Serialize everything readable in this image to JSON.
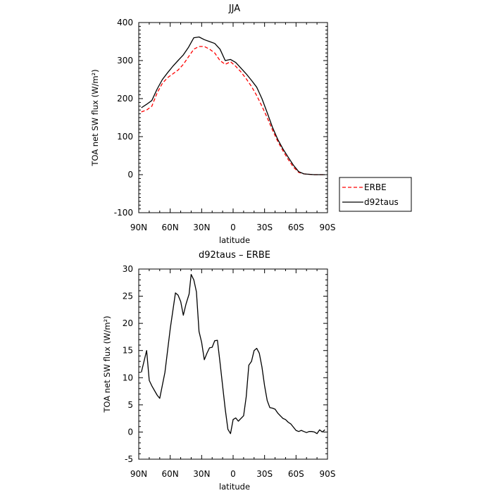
{
  "chart_data": [
    {
      "type": "line",
      "title": "JJA",
      "xlabel": "latitude",
      "ylabel": "TOA net SW flux (W/m²)",
      "ylim": [
        -100,
        400
      ],
      "yticks": [
        -100,
        0,
        100,
        200,
        300,
        400
      ],
      "xlim": [
        90,
        -90
      ],
      "xticks": [
        90,
        60,
        30,
        0,
        -30,
        -60,
        -90
      ],
      "xtick_labels": [
        "90N",
        "60N",
        "30N",
        "0",
        "30S",
        "60S",
        "90S"
      ],
      "legend": {
        "position": "right-outside",
        "entries": [
          "ERBE",
          "d92taus"
        ]
      },
      "series": [
        {
          "name": "ERBE",
          "color": "#ff0000",
          "dash": "dashed",
          "x": [
            87.5,
            82.5,
            77.5,
            72.5,
            67.5,
            62.5,
            57.5,
            52.5,
            47.5,
            42.5,
            37.5,
            32.5,
            27.5,
            22.5,
            17.5,
            12.5,
            7.5,
            2.5,
            -2.5,
            -7.5,
            -12.5,
            -17.5,
            -22.5,
            -27.5,
            -32.5,
            -37.5,
            -42.5,
            -47.5,
            -52.5,
            -57.5,
            -62.5,
            -67.5,
            -72.5,
            -77.5,
            -82.5,
            -87.5
          ],
          "y": [
            165,
            170,
            180,
            215,
            240,
            255,
            265,
            275,
            290,
            310,
            330,
            337,
            337,
            330,
            320,
            300,
            290,
            297,
            285,
            270,
            252,
            232,
            208,
            180,
            150,
            118,
            88,
            63,
            40,
            20,
            6,
            2,
            1,
            0,
            0,
            0
          ]
        },
        {
          "name": "d92taus",
          "color": "#000000",
          "dash": "solid",
          "x": [
            87.5,
            82.5,
            77.5,
            72.5,
            67.5,
            62.5,
            57.5,
            52.5,
            47.5,
            42.5,
            37.5,
            32.5,
            27.5,
            22.5,
            17.5,
            12.5,
            7.5,
            2.5,
            -2.5,
            -7.5,
            -12.5,
            -17.5,
            -22.5,
            -27.5,
            -32.5,
            -37.5,
            -42.5,
            -47.5,
            -52.5,
            -57.5,
            -62.5,
            -67.5,
            -72.5,
            -77.5,
            -82.5,
            -87.5
          ],
          "y": [
            176,
            185,
            195,
            225,
            250,
            268,
            285,
            300,
            315,
            335,
            360,
            362,
            355,
            350,
            345,
            330,
            300,
            303,
            295,
            280,
            265,
            248,
            230,
            200,
            163,
            125,
            93,
            68,
            46,
            25,
            8,
            2,
            1,
            0,
            0,
            0
          ]
        }
      ]
    },
    {
      "type": "line",
      "title": "d92taus – ERBE",
      "xlabel": "latitude",
      "ylabel": "TOA net SW flux (W/m²)",
      "ylim": [
        -5,
        30
      ],
      "yticks": [
        -5,
        0,
        5,
        10,
        15,
        20,
        25,
        30
      ],
      "xlim": [
        90,
        -90
      ],
      "xticks": [
        90,
        60,
        30,
        0,
        -30,
        -60,
        -90
      ],
      "xtick_labels": [
        "90N",
        "60N",
        "30N",
        "0",
        "30S",
        "60S",
        "90S"
      ],
      "series": [
        {
          "color": "#000000",
          "dash": "solid",
          "x": [
            87.5,
            82.5,
            80.0,
            77.5,
            72.5,
            70.0,
            65.0,
            60.0,
            55.0,
            52.5,
            50.0,
            47.5,
            45.0,
            42.0,
            40.0,
            37.5,
            35.0,
            32.5,
            30.0,
            27.5,
            25.0,
            22.5,
            20.0,
            17.5,
            15.0,
            12.5,
            10.0,
            7.5,
            5.0,
            2.5,
            0.0,
            -2.5,
            -5.0,
            -7.5,
            -10.0,
            -12.5,
            -15.0,
            -17.5,
            -20.0,
            -22.5,
            -25.0,
            -27.5,
            -30.0,
            -32.5,
            -35.0,
            -37.5,
            -40.0,
            -42.5,
            -45.0,
            -47.5,
            -50.0,
            -52.5,
            -55.0,
            -57.5,
            -60.0,
            -62.5,
            -65.0,
            -67.5,
            -70.0,
            -72.5,
            -75.0,
            -77.5,
            -80.0,
            -82.5,
            -85.0,
            -87.5
          ],
          "y": [
            11.0,
            15.0,
            9.5,
            8.5,
            6.8,
            6.2,
            11.0,
            19.0,
            25.6,
            25.2,
            24.0,
            21.5,
            23.5,
            25.4,
            29.0,
            28.0,
            25.8,
            18.5,
            16.5,
            13.3,
            14.5,
            15.5,
            15.6,
            16.8,
            16.9,
            12.8,
            8.5,
            4.2,
            0.5,
            -0.3,
            2.3,
            2.6,
            2.0,
            2.5,
            3.0,
            6.5,
            12.3,
            13.0,
            15.0,
            15.4,
            14.5,
            12.0,
            8.5,
            5.8,
            4.5,
            4.4,
            4.2,
            3.5,
            3.0,
            2.5,
            2.3,
            1.8,
            1.5,
            0.9,
            0.3,
            0.1,
            0.3,
            0.1,
            -0.1,
            0.1,
            0.1,
            0.0,
            -0.3,
            0.4,
            0.0,
            0.4
          ]
        }
      ]
    }
  ]
}
